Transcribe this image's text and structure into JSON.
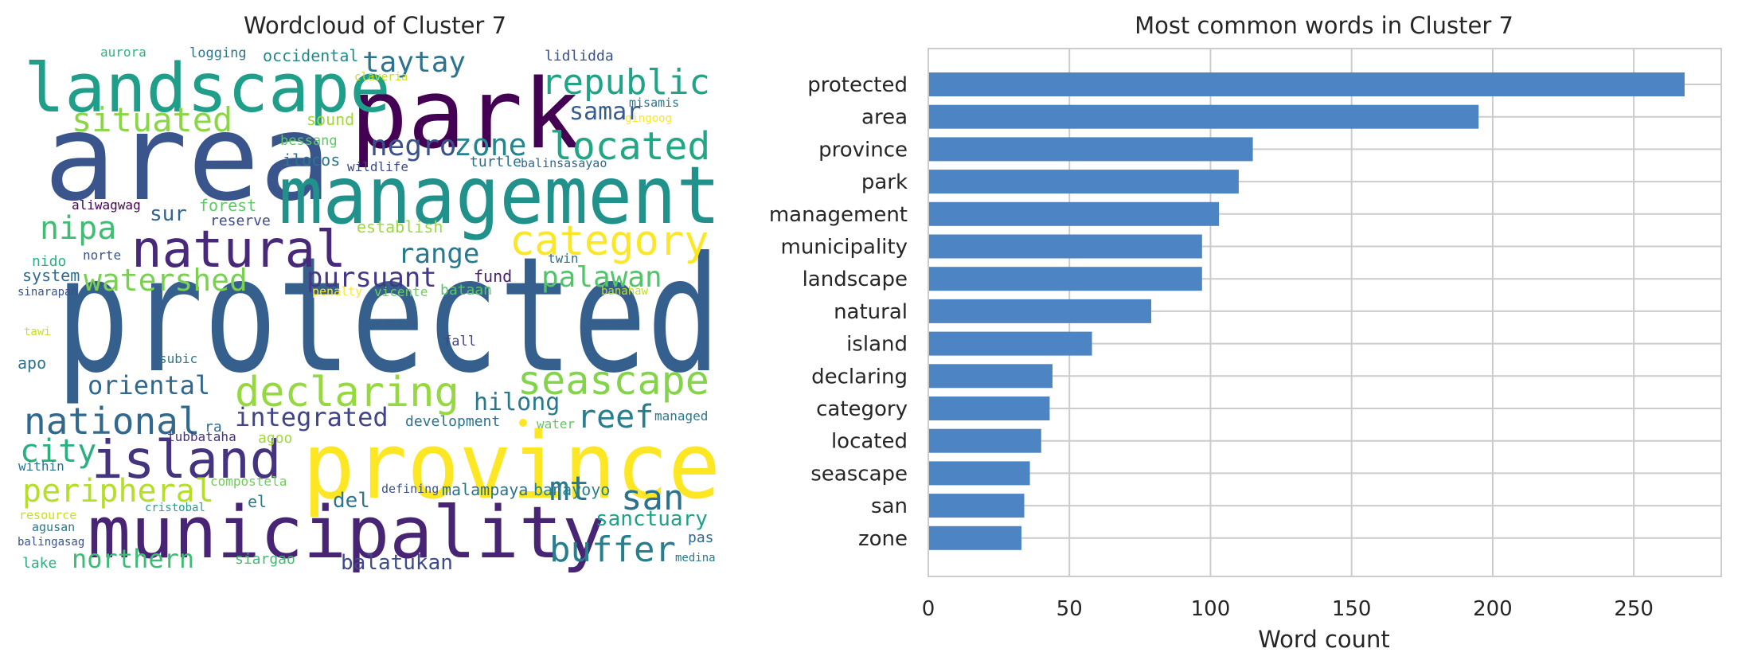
{
  "chart_data": [
    {
      "type": "wordcloud",
      "title": "Wordcloud of Cluster 7",
      "words": [
        {
          "text": "protected",
          "color": "#35608d"
        },
        {
          "text": "area",
          "color": "#39558c"
        },
        {
          "text": "park",
          "color": "#440154"
        },
        {
          "text": "management",
          "color": "#21918c"
        },
        {
          "text": "landscape",
          "color": "#1f9e89"
        },
        {
          "text": "province",
          "color": "#fde725"
        },
        {
          "text": "municipality",
          "color": "#482475"
        },
        {
          "text": "natural",
          "color": "#482979"
        },
        {
          "text": "island",
          "color": "#46337f"
        },
        {
          "text": "category",
          "color": "#fde725"
        },
        {
          "text": "located",
          "color": "#22a785"
        },
        {
          "text": "republic",
          "color": "#20a386"
        },
        {
          "text": "situated",
          "color": "#8bd646"
        },
        {
          "text": "taytay",
          "color": "#2c738e"
        },
        {
          "text": "negro",
          "color": "#3b518b"
        },
        {
          "text": "zone",
          "color": "#25848e"
        },
        {
          "text": "nipa",
          "color": "#40bd72"
        },
        {
          "text": "watershed",
          "color": "#7ad151"
        },
        {
          "text": "range",
          "color": "#2a788e"
        },
        {
          "text": "pursuant",
          "color": "#443a83"
        },
        {
          "text": "palawan",
          "color": "#52c569"
        },
        {
          "text": "samar",
          "color": "#365c8d"
        },
        {
          "text": "declaring",
          "color": "#95d840"
        },
        {
          "text": "seascape",
          "color": "#84d44b"
        },
        {
          "text": "oriental",
          "color": "#31688e"
        },
        {
          "text": "national",
          "color": "#31688e"
        },
        {
          "text": "integrated",
          "color": "#414487"
        },
        {
          "text": "hilong",
          "color": "#2a788e"
        },
        {
          "text": "reef",
          "color": "#287d8e"
        },
        {
          "text": "city",
          "color": "#2ab07f"
        },
        {
          "text": "peripheral",
          "color": "#b5de2b"
        },
        {
          "text": "san",
          "color": "#2c728e"
        },
        {
          "text": "mt",
          "color": "#2a788e"
        },
        {
          "text": "buffer",
          "color": "#277f8e"
        },
        {
          "text": "sanctuary",
          "color": "#1fa088"
        },
        {
          "text": "northern",
          "color": "#3dbc74"
        },
        {
          "text": "balatukan",
          "color": "#3e4a89"
        },
        {
          "text": "del",
          "color": "#2a768e"
        },
        {
          "text": "malampaya",
          "color": "#2c728e"
        },
        {
          "text": "banayoyo",
          "color": "#26828e"
        },
        {
          "text": "sur",
          "color": "#32658e"
        },
        {
          "text": "forest",
          "color": "#5ec962"
        },
        {
          "text": "reserve",
          "color": "#3e4989"
        },
        {
          "text": "establish",
          "color": "#9dd93b"
        },
        {
          "text": "fund",
          "color": "#482173"
        },
        {
          "text": "twin",
          "color": "#2f6c8e"
        },
        {
          "text": "bataan",
          "color": "#56c667"
        },
        {
          "text": "vicente",
          "color": "#6ece58"
        },
        {
          "text": "penalty",
          "color": "#fde725"
        },
        {
          "text": "banahaw",
          "color": "#bddf26"
        },
        {
          "text": "system",
          "color": "#2f6b8e"
        },
        {
          "text": "nido",
          "color": "#2ab07f"
        },
        {
          "text": "norte",
          "color": "#3b528b"
        },
        {
          "text": "sinarapan",
          "color": "#3b528b"
        },
        {
          "text": "aurora",
          "color": "#2fb47c"
        },
        {
          "text": "logging",
          "color": "#2a788e"
        },
        {
          "text": "occidental",
          "color": "#23888e"
        },
        {
          "text": "lidlidda",
          "color": "#3b528b"
        },
        {
          "text": "claveria",
          "color": "#c8e020"
        },
        {
          "text": "misamis",
          "color": "#2c728e"
        },
        {
          "text": "gingoog",
          "color": "#fde725"
        },
        {
          "text": "sound",
          "color": "#a0da39"
        },
        {
          "text": "bessang",
          "color": "#5ec962"
        },
        {
          "text": "ilocos",
          "color": "#2a768e"
        },
        {
          "text": "wildlife",
          "color": "#3e4989"
        },
        {
          "text": "turtle",
          "color": "#2c728e"
        },
        {
          "text": "balinsasayao",
          "color": "#31688e"
        },
        {
          "text": "aliwagwag",
          "color": "#440154"
        },
        {
          "text": "tawi",
          "color": "#c8e020"
        },
        {
          "text": "apo",
          "color": "#2c728e"
        },
        {
          "text": "subic",
          "color": "#2a788e"
        },
        {
          "text": "fall",
          "color": "#414487"
        },
        {
          "text": "development",
          "color": "#2c728e"
        },
        {
          "text": "water",
          "color": "#5ec962"
        },
        {
          "text": "managed",
          "color": "#2a788e"
        },
        {
          "text": "ra",
          "color": "#31688e"
        },
        {
          "text": "tubbataha",
          "color": "#46337f"
        },
        {
          "text": "agoo",
          "color": "#a0da39"
        },
        {
          "text": "within",
          "color": "#2c728e"
        },
        {
          "text": "compostela",
          "color": "#6ece58"
        },
        {
          "text": "defining",
          "color": "#3b528b"
        },
        {
          "text": "el",
          "color": "#2a788e"
        },
        {
          "text": "resource",
          "color": "#c8e020"
        },
        {
          "text": "agusan",
          "color": "#2a788e"
        },
        {
          "text": "cristobal",
          "color": "#1fa088"
        },
        {
          "text": "balingasag",
          "color": "#3b528b"
        },
        {
          "text": "lake",
          "color": "#2ab07f"
        },
        {
          "text": "siargao",
          "color": "#40bd72"
        },
        {
          "text": "pas",
          "color": "#31688e"
        },
        {
          "text": "medina",
          "color": "#2a788e"
        }
      ]
    },
    {
      "type": "bar",
      "orientation": "horizontal",
      "title": "Most common words in Cluster 7",
      "xlabel": "Word count",
      "ylabel": "",
      "categories": [
        "protected",
        "area",
        "province",
        "park",
        "management",
        "municipality",
        "landscape",
        "natural",
        "island",
        "declaring",
        "category",
        "located",
        "seascape",
        "san",
        "zone"
      ],
      "values": [
        268,
        195,
        115,
        110,
        103,
        97,
        97,
        79,
        58,
        44,
        43,
        40,
        36,
        34,
        33
      ],
      "xlim": [
        0,
        281
      ],
      "xticks": [
        0,
        50,
        100,
        150,
        200,
        250
      ],
      "grid": true,
      "bar_color": "#4c84c4"
    }
  ]
}
